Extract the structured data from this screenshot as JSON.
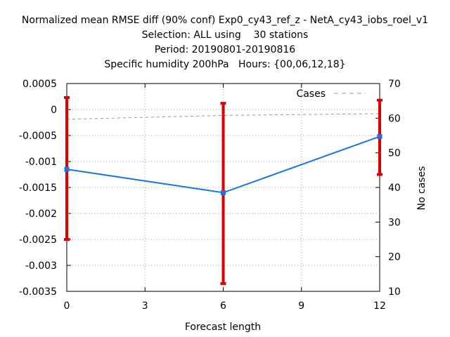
{
  "chart_data": {
    "type": "line",
    "title_lines": [
      "Normalized mean RMSE diff (90% conf) Exp0_cy43_ref_z - NetA_cy43_iobs_roel_v1",
      "Selection: ALL using    30 stations",
      "Period: 20190801-20190816",
      "Specific humidity 200hPa   Hours: {00,06,12,18}"
    ],
    "xlabel": "Forecast length",
    "ylabel": "",
    "y2label": "No cases",
    "xlim": [
      0,
      12
    ],
    "ylim": [
      -0.0035,
      0.0005
    ],
    "y2lim": [
      10,
      70
    ],
    "x_ticks": [
      "0",
      "3",
      "6",
      "9",
      "12"
    ],
    "y_ticks": [
      "0.0005",
      "0",
      "-0.0005",
      "-0.001",
      "-0.0015",
      "-0.002",
      "-0.0025",
      "-0.003",
      "-0.0035"
    ],
    "y2_ticks": [
      "70",
      "60",
      "50",
      "40",
      "30",
      "20",
      "10"
    ],
    "grid": true,
    "legend_position": "top-right",
    "series": [
      {
        "kind": "line-with-errorbars",
        "color": "#1874e0",
        "x": [
          0,
          6,
          12
        ],
        "y": [
          -0.00115,
          -0.0016,
          -0.00052
        ],
        "err_low": [
          -0.0025,
          -0.00335,
          -0.00125
        ],
        "err_high": [
          0.00023,
          0.00012,
          0.00018
        ],
        "errorbar_color": "#dd0000"
      },
      {
        "name": "Cases",
        "kind": "dashed-line",
        "axis": "y2",
        "color": "#999999",
        "x": [
          0,
          6,
          12
        ],
        "y": [
          59.7,
          60.8,
          61.3
        ]
      }
    ]
  }
}
